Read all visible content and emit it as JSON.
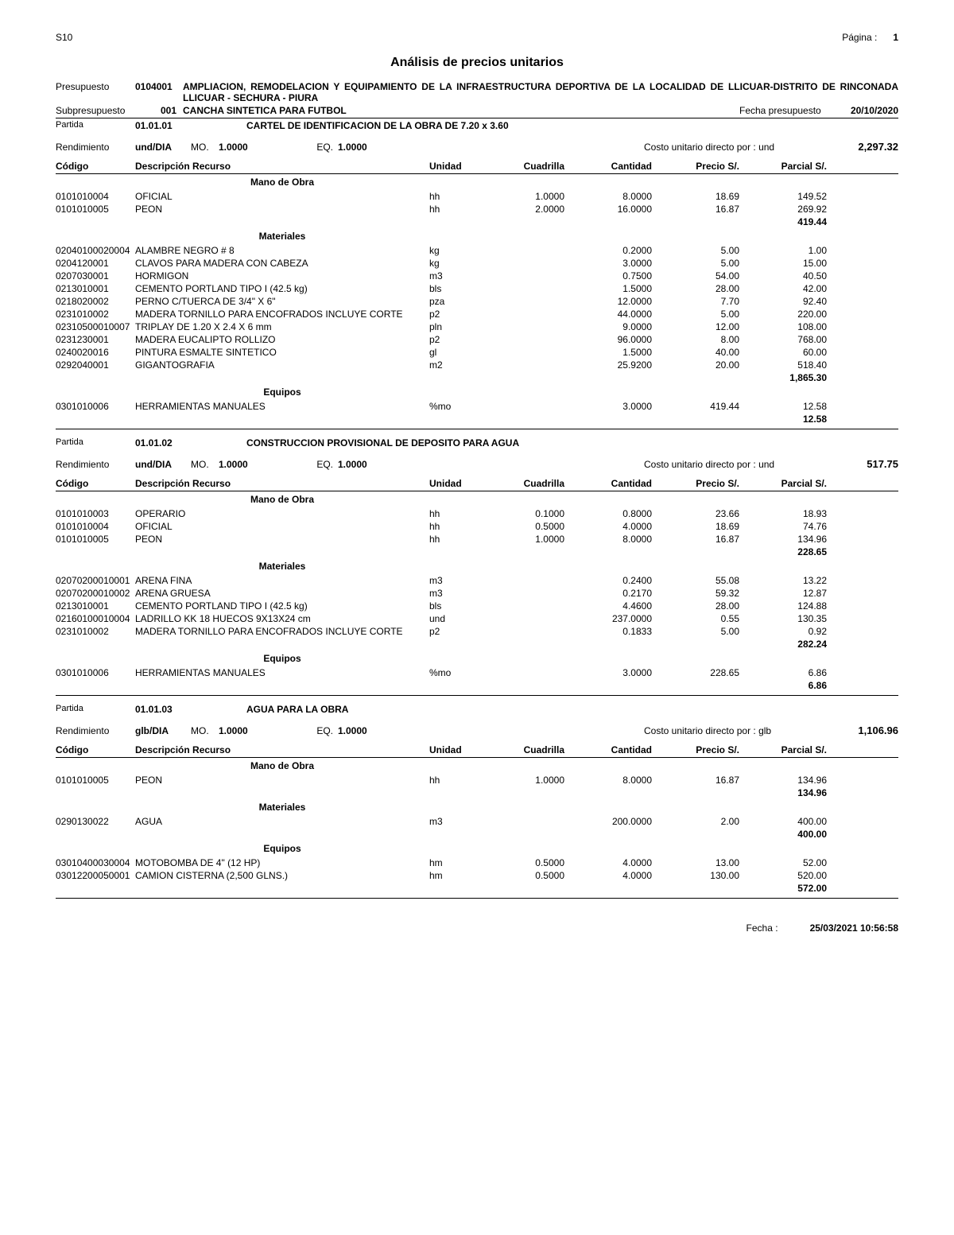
{
  "header": {
    "app": "S10",
    "page_label": "Página :",
    "page_num": "1",
    "title": "Análisis de precios unitarios",
    "presupuesto_label": "Presupuesto",
    "presupuesto_code": "0104001",
    "presupuesto_desc": "AMPLIACION, REMODELACION Y EQUIPAMIENTO DE LA INFRAESTRUCTURA DEPORTIVA DE LA LOCALIDAD DE LLICUAR-DISTRITO DE RINCONADA LLICUAR - SECHURA - PIURA",
    "sub_label": "Subpresupuesto",
    "sub_code": "001",
    "sub_desc": "CANCHA SINTETICA PARA FUTBOL",
    "fecha_pres_label": "Fecha presupuesto",
    "fecha_pres": "20/10/2020"
  },
  "labels": {
    "partida": "Partida",
    "rendimiento": "Rendimiento",
    "mo": "MO.",
    "eq": "EQ.",
    "costo": "Costo unitario directo por : ",
    "codigo": "Código",
    "desc": "Descripción Recurso",
    "unidad": "Unidad",
    "cuadrilla": "Cuadrilla",
    "cantidad": "Cantidad",
    "precio": "Precio S/.",
    "parcial": "Parcial S/.",
    "mano": "Mano de Obra",
    "materiales": "Materiales",
    "equipos": "Equipos"
  },
  "partidas": [
    {
      "code": "01.01.01",
      "desc": "CARTEL DE IDENTIFICACION DE LA OBRA DE 7.20 x 3.60",
      "rend_unit": "und/DIA",
      "mo": "1.0000",
      "eq": "1.0000",
      "costo_unit": "und",
      "costo_val": "2,297.32",
      "sections": [
        {
          "name": "mano",
          "rows": [
            {
              "cod": "0101010004",
              "desc": "OFICIAL",
              "un": "hh",
              "cuad": "1.0000",
              "cant": "8.0000",
              "prec": "18.69",
              "parc": "149.52"
            },
            {
              "cod": "0101010005",
              "desc": "PEON",
              "un": "hh",
              "cuad": "2.0000",
              "cant": "16.0000",
              "prec": "16.87",
              "parc": "269.92"
            }
          ],
          "subtotal": "419.44"
        },
        {
          "name": "materiales",
          "rows": [
            {
              "cod": "02040100020004",
              "desc": "ALAMBRE NEGRO # 8",
              "un": "kg",
              "cuad": "",
              "cant": "0.2000",
              "prec": "5.00",
              "parc": "1.00"
            },
            {
              "cod": "0204120001",
              "desc": "CLAVOS PARA MADERA CON CABEZA",
              "un": "kg",
              "cuad": "",
              "cant": "3.0000",
              "prec": "5.00",
              "parc": "15.00"
            },
            {
              "cod": "0207030001",
              "desc": "HORMIGON",
              "un": "m3",
              "cuad": "",
              "cant": "0.7500",
              "prec": "54.00",
              "parc": "40.50"
            },
            {
              "cod": "0213010001",
              "desc": "CEMENTO PORTLAND TIPO I (42.5 kg)",
              "un": "bls",
              "cuad": "",
              "cant": "1.5000",
              "prec": "28.00",
              "parc": "42.00"
            },
            {
              "cod": "0218020002",
              "desc": "PERNO C/TUERCA DE 3/4\" X 6\"",
              "un": "pza",
              "cuad": "",
              "cant": "12.0000",
              "prec": "7.70",
              "parc": "92.40"
            },
            {
              "cod": "0231010002",
              "desc": "MADERA TORNILLO PARA ENCOFRADOS INCLUYE CORTE",
              "un": "p2",
              "cuad": "",
              "cant": "44.0000",
              "prec": "5.00",
              "parc": "220.00"
            },
            {
              "cod": "02310500010007",
              "desc": "TRIPLAY DE 1.20 X 2.4 X 6 mm",
              "un": "pln",
              "cuad": "",
              "cant": "9.0000",
              "prec": "12.00",
              "parc": "108.00"
            },
            {
              "cod": "0231230001",
              "desc": "MADERA EUCALIPTO ROLLIZO",
              "un": "p2",
              "cuad": "",
              "cant": "96.0000",
              "prec": "8.00",
              "parc": "768.00"
            },
            {
              "cod": "0240020016",
              "desc": "PINTURA ESMALTE SINTETICO",
              "un": "gl",
              "cuad": "",
              "cant": "1.5000",
              "prec": "40.00",
              "parc": "60.00"
            },
            {
              "cod": "0292040001",
              "desc": "GIGANTOGRAFIA",
              "un": "m2",
              "cuad": "",
              "cant": "25.9200",
              "prec": "20.00",
              "parc": "518.40"
            }
          ],
          "subtotal": "1,865.30"
        },
        {
          "name": "equipos",
          "rows": [
            {
              "cod": "0301010006",
              "desc": "HERRAMIENTAS MANUALES",
              "un": "%mo",
              "cuad": "",
              "cant": "3.0000",
              "prec": "419.44",
              "parc": "12.58"
            }
          ],
          "subtotal": "12.58"
        }
      ]
    },
    {
      "code": "01.01.02",
      "desc": "CONSTRUCCION PROVISIONAL DE DEPOSITO PARA AGUA",
      "rend_unit": "und/DIA",
      "mo": "1.0000",
      "eq": "1.0000",
      "costo_unit": "und",
      "costo_val": "517.75",
      "sections": [
        {
          "name": "mano",
          "rows": [
            {
              "cod": "0101010003",
              "desc": "OPERARIO",
              "un": "hh",
              "cuad": "0.1000",
              "cant": "0.8000",
              "prec": "23.66",
              "parc": "18.93"
            },
            {
              "cod": "0101010004",
              "desc": "OFICIAL",
              "un": "hh",
              "cuad": "0.5000",
              "cant": "4.0000",
              "prec": "18.69",
              "parc": "74.76"
            },
            {
              "cod": "0101010005",
              "desc": "PEON",
              "un": "hh",
              "cuad": "1.0000",
              "cant": "8.0000",
              "prec": "16.87",
              "parc": "134.96"
            }
          ],
          "subtotal": "228.65"
        },
        {
          "name": "materiales",
          "rows": [
            {
              "cod": "02070200010001",
              "desc": "ARENA FINA",
              "un": "m3",
              "cuad": "",
              "cant": "0.2400",
              "prec": "55.08",
              "parc": "13.22"
            },
            {
              "cod": "02070200010002",
              "desc": "ARENA GRUESA",
              "un": "m3",
              "cuad": "",
              "cant": "0.2170",
              "prec": "59.32",
              "parc": "12.87"
            },
            {
              "cod": "0213010001",
              "desc": "CEMENTO PORTLAND TIPO I (42.5 kg)",
              "un": "bls",
              "cuad": "",
              "cant": "4.4600",
              "prec": "28.00",
              "parc": "124.88"
            },
            {
              "cod": "02160100010004",
              "desc": "LADRILLO KK 18 HUECOS 9X13X24 cm",
              "un": "und",
              "cuad": "",
              "cant": "237.0000",
              "prec": "0.55",
              "parc": "130.35"
            },
            {
              "cod": "0231010002",
              "desc": "MADERA TORNILLO PARA ENCOFRADOS INCLUYE CORTE",
              "un": "p2",
              "cuad": "",
              "cant": "0.1833",
              "prec": "5.00",
              "parc": "0.92"
            }
          ],
          "subtotal": "282.24"
        },
        {
          "name": "equipos",
          "rows": [
            {
              "cod": "0301010006",
              "desc": "HERRAMIENTAS MANUALES",
              "un": "%mo",
              "cuad": "",
              "cant": "3.0000",
              "prec": "228.65",
              "parc": "6.86"
            }
          ],
          "subtotal": "6.86"
        }
      ]
    },
    {
      "code": "01.01.03",
      "desc": "AGUA PARA LA OBRA",
      "rend_unit": "glb/DIA",
      "mo": "1.0000",
      "eq": "1.0000",
      "costo_unit": "glb",
      "costo_val": "1,106.96",
      "sections": [
        {
          "name": "mano",
          "rows": [
            {
              "cod": "0101010005",
              "desc": "PEON",
              "un": "hh",
              "cuad": "1.0000",
              "cant": "8.0000",
              "prec": "16.87",
              "parc": "134.96"
            }
          ],
          "subtotal": "134.96"
        },
        {
          "name": "materiales",
          "rows": [
            {
              "cod": "0290130022",
              "desc": "AGUA",
              "un": "m3",
              "cuad": "",
              "cant": "200.0000",
              "prec": "2.00",
              "parc": "400.00"
            }
          ],
          "subtotal": "400.00"
        },
        {
          "name": "equipos",
          "rows": [
            {
              "cod": "03010400030004",
              "desc": "MOTOBOMBA DE 4\" (12 HP)",
              "un": "hm",
              "cuad": "0.5000",
              "cant": "4.0000",
              "prec": "13.00",
              "parc": "52.00"
            },
            {
              "cod": "03012200050001",
              "desc": "CAMION CISTERNA (2,500 GLNS.)",
              "un": "hm",
              "cuad": "0.5000",
              "cant": "4.0000",
              "prec": "130.00",
              "parc": "520.00"
            }
          ],
          "subtotal": "572.00"
        }
      ]
    }
  ],
  "footer": {
    "fecha_label": "Fecha  :",
    "fecha_val": "25/03/2021  10:56:58"
  }
}
